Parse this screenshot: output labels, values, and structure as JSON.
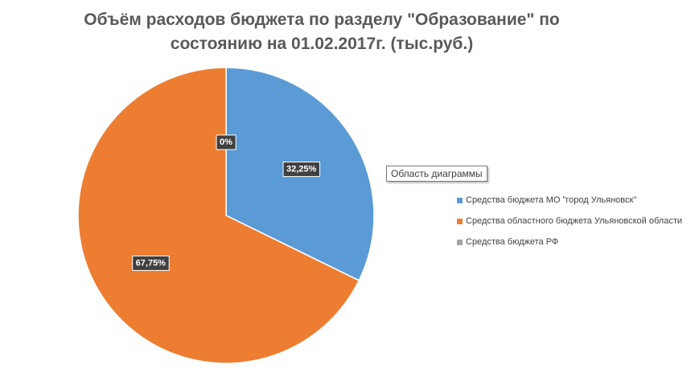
{
  "chart_data": {
    "type": "pie",
    "title_lines": [
      "Объём расходов бюджета по разделу \"Образование\" по",
      "состоянию на 01.02.2017г. (тыс.руб.)"
    ],
    "series": [
      {
        "name": "Средства бюджета МО \"город Ульяновск\"",
        "value": 32.25,
        "label": "32,25%",
        "color": "#5b9bd5"
      },
      {
        "name": "Средства областного бюджета Ульяновской области",
        "value": 67.75,
        "label": "67,75%",
        "color": "#ed7d31"
      },
      {
        "name": "Средства бюджета РФ",
        "value": 0,
        "label": "0%",
        "color": "#a5a5a5"
      }
    ],
    "legend_position": "right",
    "start_angle_deg": 0,
    "direction": "clockwise"
  },
  "tooltip": {
    "text": "Область диаграммы"
  }
}
